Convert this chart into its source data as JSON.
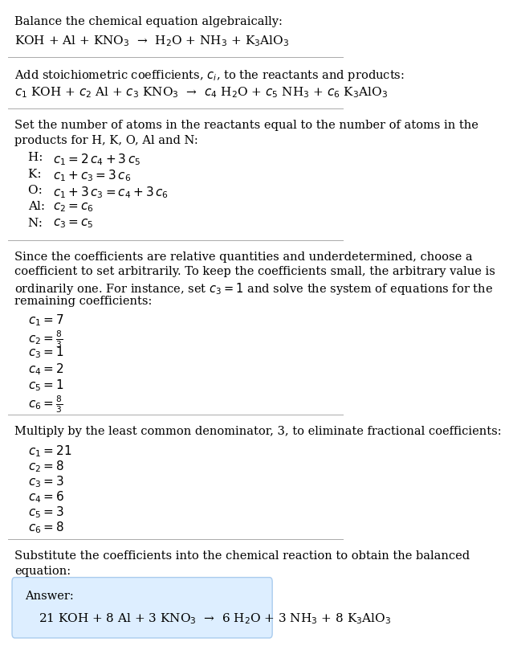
{
  "title_line1": "Balance the chemical equation algebraically:",
  "reaction_line": "KOH + Al + KNO$_3$  →  H$_2$O + NH$_3$ + K$_3$AlO$_3$",
  "section1_intro": "Add stoichiometric coefficients, $c_i$, to the reactants and products:",
  "section1_reaction": "$c_1$ KOH + $c_2$ Al + $c_3$ KNO$_3$  →  $c_4$ H$_2$O + $c_5$ NH$_3$ + $c_6$ K$_3$AlO$_3$",
  "section2_intro1": "Set the number of atoms in the reactants equal to the number of atoms in the",
  "section2_intro2": "products for H, K, O, Al and N:",
  "equations": [
    [
      "H: ",
      "$c_1 = 2\\,c_4 + 3\\,c_5$"
    ],
    [
      "K: ",
      "$c_1 + c_3 = 3\\,c_6$"
    ],
    [
      "O: ",
      "$c_1 + 3\\,c_3 = c_4 + 3\\,c_6$"
    ],
    [
      "Al: ",
      "$c_2 = c_6$"
    ],
    [
      "N: ",
      "$c_3 = c_5$"
    ]
  ],
  "section3_intro": [
    "Since the coefficients are relative quantities and underdetermined, choose a",
    "coefficient to set arbitrarily. To keep the coefficients small, the arbitrary value is",
    "ordinarily one. For instance, set $c_3 = 1$ and solve the system of equations for the",
    "remaining coefficients:"
  ],
  "initial_coeffs": [
    "$c_1 = 7$",
    "$c_2 = \\frac{8}{3}$",
    "$c_3 = 1$",
    "$c_4 = 2$",
    "$c_5 = 1$",
    "$c_6 = \\frac{8}{3}$"
  ],
  "section4_intro": "Multiply by the least common denominator, 3, to eliminate fractional coefficients:",
  "final_coeffs": [
    "$c_1 = 21$",
    "$c_2 = 8$",
    "$c_3 = 3$",
    "$c_4 = 6$",
    "$c_5 = 3$",
    "$c_6 = 8$"
  ],
  "section5_intro1": "Substitute the coefficients into the chemical reaction to obtain the balanced",
  "section5_intro2": "equation:",
  "answer_label": "Answer:",
  "answer_reaction": "21 KOH + 8 Al + 3 KNO$_3$  →  6 H$_2$O + 3 NH$_3$ + 8 K$_3$AlO$_3$",
  "bg_color": "#ffffff",
  "answer_box_color": "#ddeeff",
  "answer_box_edge": "#aaccee",
  "text_color": "#000000",
  "font_size": 10.5
}
